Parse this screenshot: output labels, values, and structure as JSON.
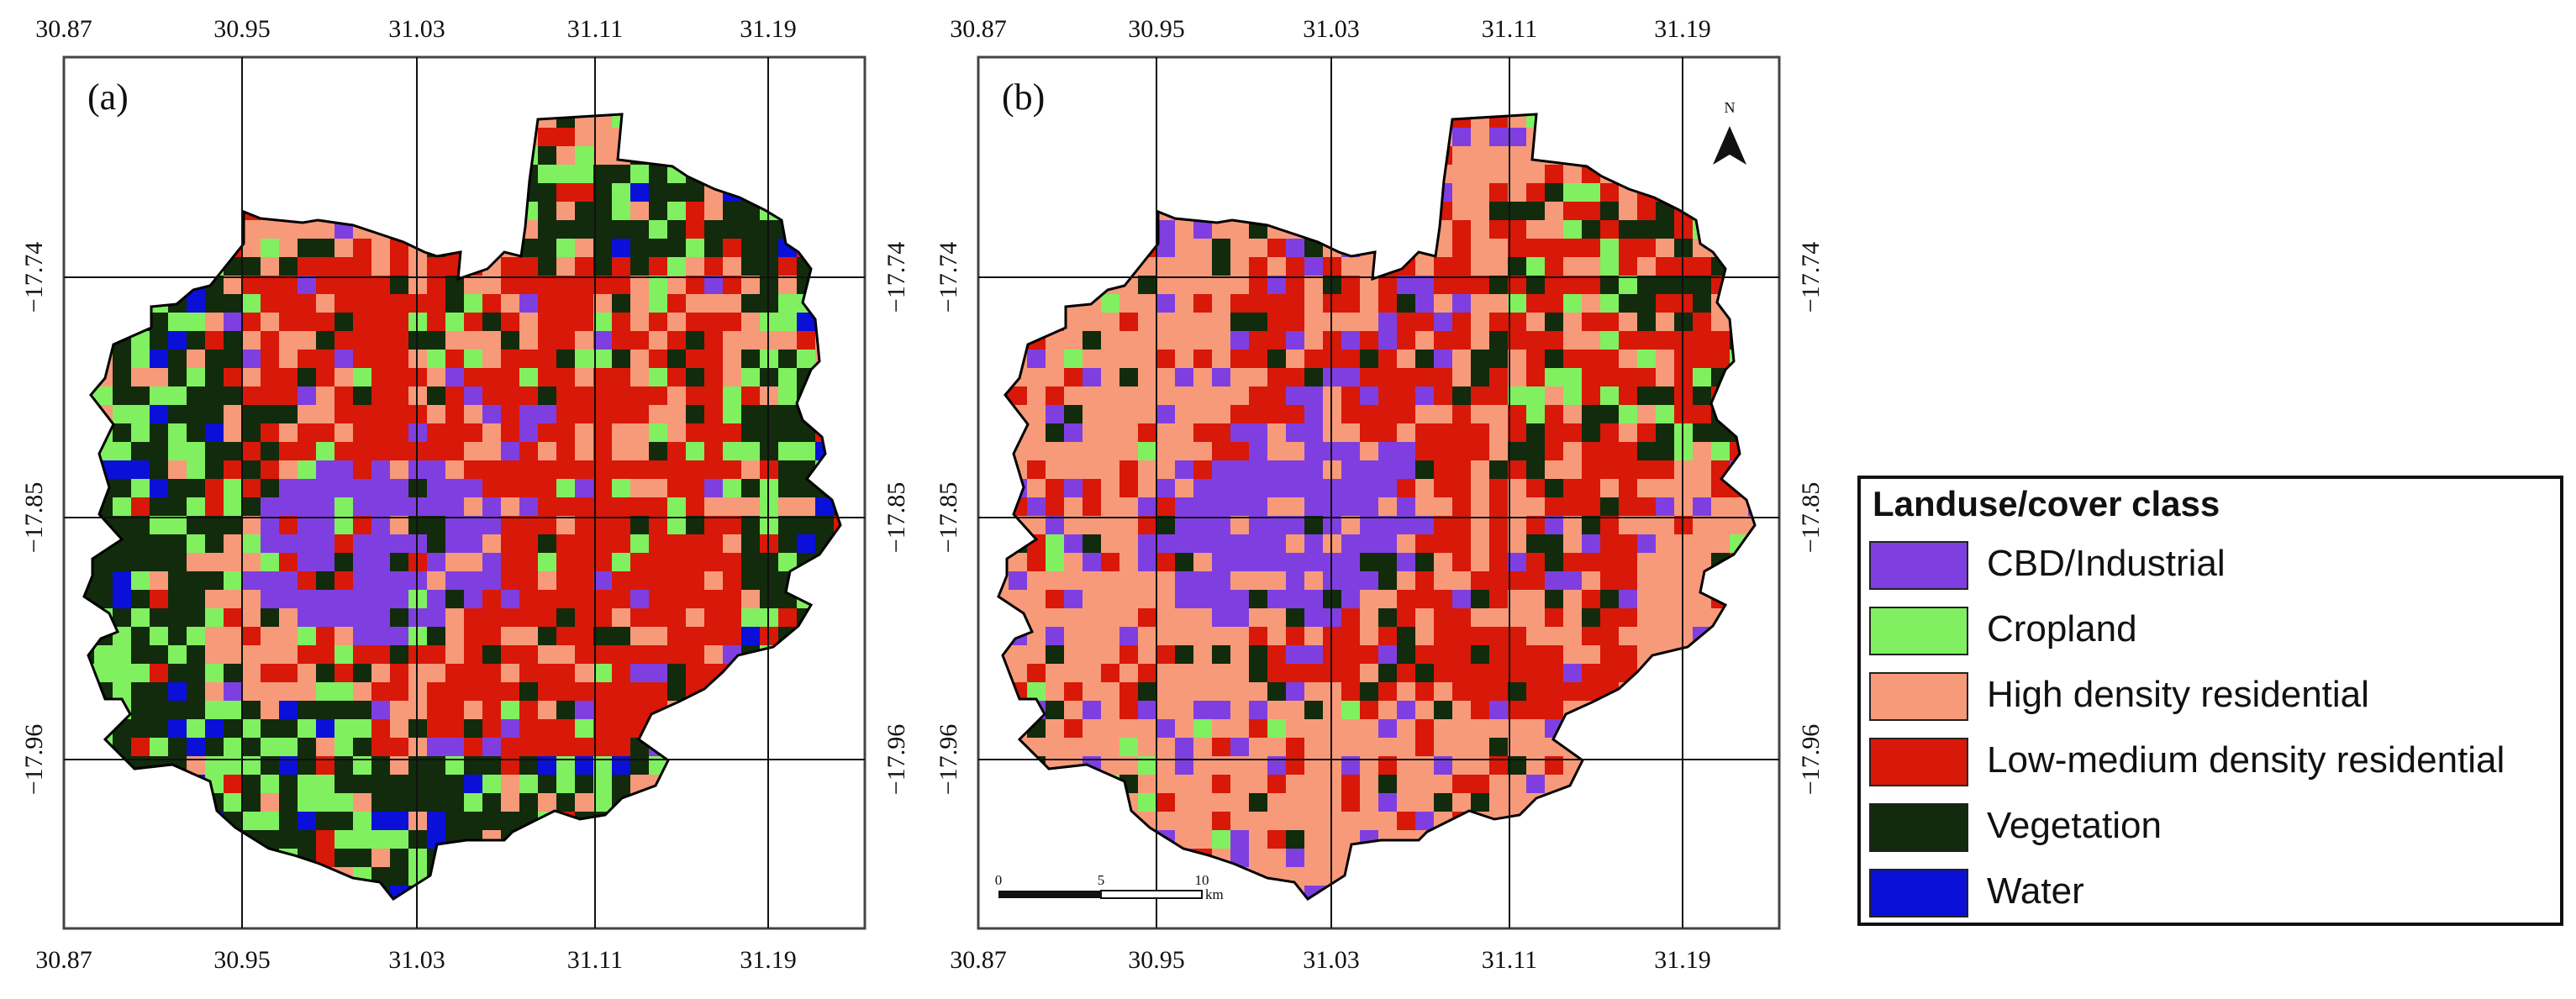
{
  "panels": [
    {
      "label": "(a)",
      "x_ticks": [
        "30.87",
        "30.95",
        "31.03",
        "31.11",
        "31.19"
      ],
      "y_ticks": [
        "-17.74",
        "-17.85",
        "-17.96"
      ]
    },
    {
      "label": "(b)",
      "x_ticks": [
        "30.87",
        "30.95",
        "31.03",
        "31.11",
        "31.19"
      ],
      "y_ticks": [
        "-17.74",
        "-17.85",
        "-17.96"
      ],
      "north_label": "N",
      "scale_bar": {
        "ticks": [
          "0",
          "5",
          "10"
        ],
        "unit": "km"
      }
    }
  ],
  "legend": {
    "title": "Landuse/cover class",
    "items": [
      {
        "label": "CBD/Industrial",
        "color": "#7f3fe0"
      },
      {
        "label": "Cropland",
        "color": "#80f060"
      },
      {
        "label": "High density residential",
        "color": "#f79a7a"
      },
      {
        "label": "Low-medium density residential",
        "color": "#d81808"
      },
      {
        "label": "Vegetation",
        "color": "#112b0c"
      },
      {
        "label": "Water",
        "color": "#0a10d8"
      }
    ]
  }
}
